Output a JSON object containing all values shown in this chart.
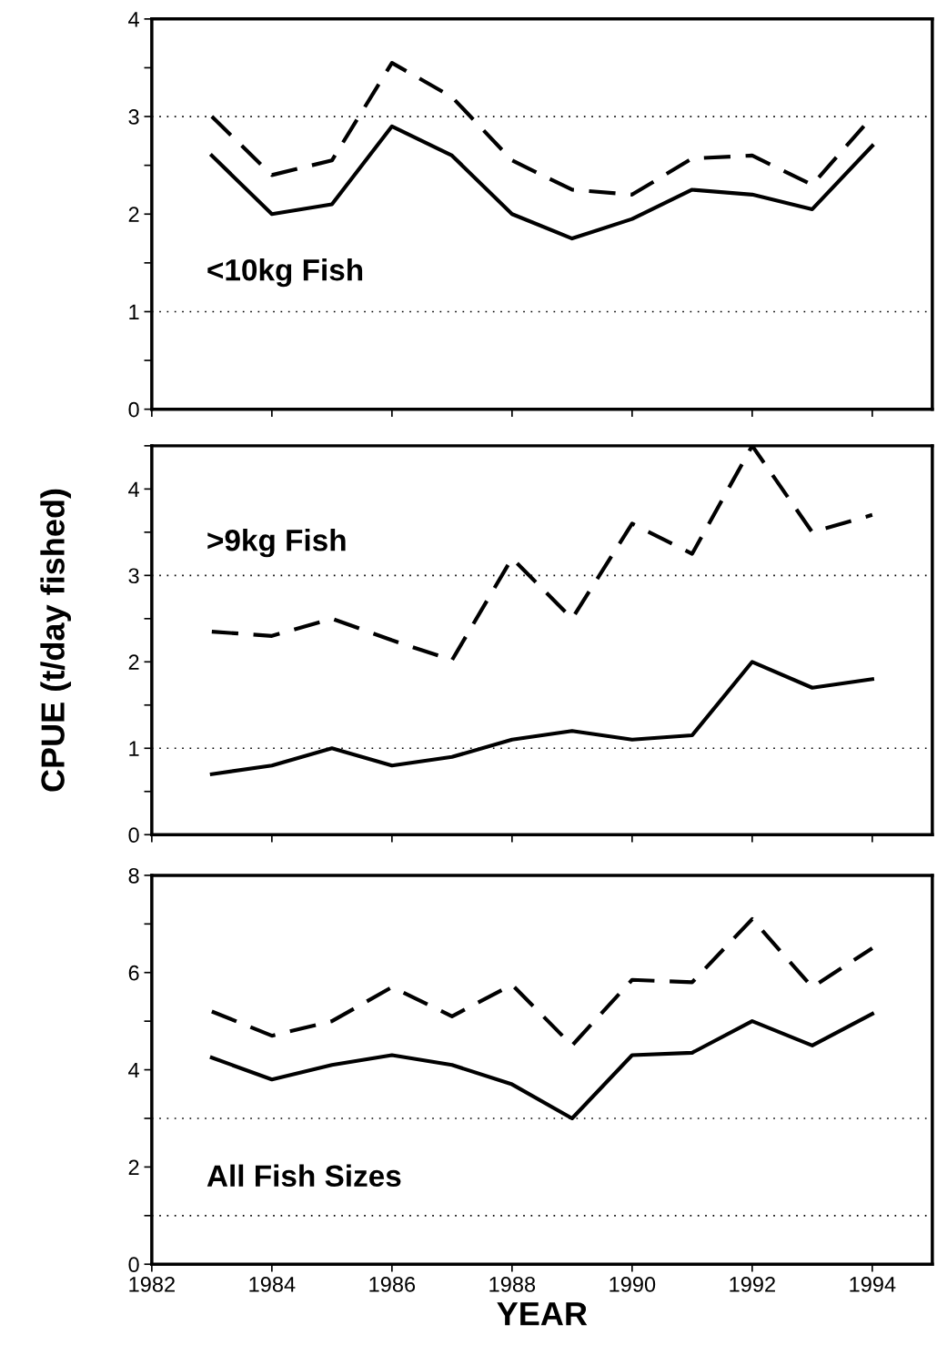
{
  "chart_data": [
    {
      "type": "line",
      "annotations": [
        "<10kg Fish"
      ],
      "x": [
        1983,
        1984,
        1985,
        1986,
        1987,
        1988,
        1989,
        1990,
        1991,
        1992,
        1993,
        1994
      ],
      "series": [
        {
          "color": "#000000",
          "line_style": "dashed",
          "values": [
            3.0,
            2.4,
            2.55,
            3.55,
            3.2,
            2.55,
            2.25,
            2.2,
            2.57,
            2.6,
            2.3,
            3.0
          ]
        },
        {
          "color": "#000000",
          "line_style": "solid",
          "values": [
            2.6,
            2.0,
            2.1,
            2.9,
            2.6,
            2.0,
            1.75,
            1.95,
            2.25,
            2.2,
            2.05,
            2.7
          ]
        }
      ],
      "xlim": [
        1982,
        1995
      ],
      "xticks": [
        1982,
        1984,
        1986,
        1988,
        1990,
        1992,
        1994
      ],
      "ylim": [
        0,
        4
      ],
      "yticks": [
        0,
        {
          "value": 0.5,
          "label": null
        },
        1,
        {
          "value": 1.5,
          "label": null
        },
        2,
        {
          "value": 2.5,
          "label": null
        },
        3,
        {
          "value": 3.5,
          "label": null
        },
        4
      ],
      "ref_lines": [
        {
          "axis": "y",
          "value": 1,
          "color": "#000000",
          "line_style": "dotted"
        },
        {
          "axis": "y",
          "value": 3,
          "color": "#000000",
          "line_style": "dotted"
        }
      ],
      "tick_labels": "y",
      "grid": false,
      "legend": false
    },
    {
      "type": "line",
      "annotations": [
        ">9kg Fish"
      ],
      "ylabel": "CPUE (t/day fished)",
      "x": [
        1983,
        1984,
        1985,
        1986,
        1987,
        1988,
        1989,
        1990,
        1991,
        1992,
        1993,
        1994
      ],
      "series": [
        {
          "color": "#000000",
          "line_style": "dashed",
          "values": [
            2.35,
            2.3,
            2.5,
            2.25,
            2.02,
            3.2,
            2.5,
            3.6,
            3.25,
            4.5,
            3.5,
            3.7
          ]
        },
        {
          "color": "#000000",
          "line_style": "solid",
          "values": [
            0.7,
            0.8,
            1.0,
            0.8,
            0.9,
            1.1,
            1.2,
            1.1,
            1.15,
            2.0,
            1.7,
            1.8
          ]
        }
      ],
      "xlim": [
        1982,
        1995
      ],
      "xticks": [
        1982,
        1984,
        1986,
        1988,
        1990,
        1992,
        1994
      ],
      "ylim": [
        0,
        4.5
      ],
      "yticks": [
        0,
        {
          "value": 0.5,
          "label": null
        },
        1,
        {
          "value": 1.5,
          "label": null
        },
        2,
        {
          "value": 2.5,
          "label": null
        },
        3,
        {
          "value": 3.5,
          "label": null
        },
        4,
        {
          "value": 4.5,
          "label": null
        }
      ],
      "ref_lines": [
        {
          "axis": "y",
          "value": 1,
          "color": "#000000",
          "line_style": "dotted"
        },
        {
          "axis": "y",
          "value": 3,
          "color": "#000000",
          "line_style": "dotted"
        }
      ],
      "tick_labels": "y",
      "grid": false,
      "legend": false
    },
    {
      "type": "line",
      "annotations": [
        "All Fish Sizes"
      ],
      "xlabel": "YEAR",
      "x": [
        1983,
        1984,
        1985,
        1986,
        1987,
        1988,
        1989,
        1990,
        1991,
        1992,
        1993,
        1994
      ],
      "series": [
        {
          "color": "#000000",
          "line_style": "dashed",
          "values": [
            5.2,
            4.7,
            5.0,
            5.7,
            5.1,
            5.75,
            4.5,
            5.85,
            5.8,
            7.1,
            5.7,
            6.5
          ]
        },
        {
          "color": "#000000",
          "line_style": "solid",
          "values": [
            4.25,
            3.8,
            4.1,
            4.3,
            4.1,
            3.7,
            3.0,
            4.3,
            4.35,
            5.0,
            4.5,
            5.15
          ]
        }
      ],
      "xlim": [
        1982,
        1995
      ],
      "xticks": [
        1982,
        1984,
        1986,
        1988,
        1990,
        1992,
        1994
      ],
      "ylim": [
        0,
        8
      ],
      "yticks": [
        0,
        {
          "value": 1,
          "label": null
        },
        2,
        {
          "value": 3,
          "label": null
        },
        4,
        {
          "value": 5,
          "label": null
        },
        6,
        {
          "value": 7,
          "label": null
        },
        8
      ],
      "ref_lines": [
        {
          "axis": "y",
          "value": 1,
          "color": "#000000",
          "line_style": "dotted"
        },
        {
          "axis": "y",
          "value": 3,
          "color": "#000000",
          "line_style": "dotted"
        }
      ],
      "grid": false,
      "legend": false
    }
  ]
}
